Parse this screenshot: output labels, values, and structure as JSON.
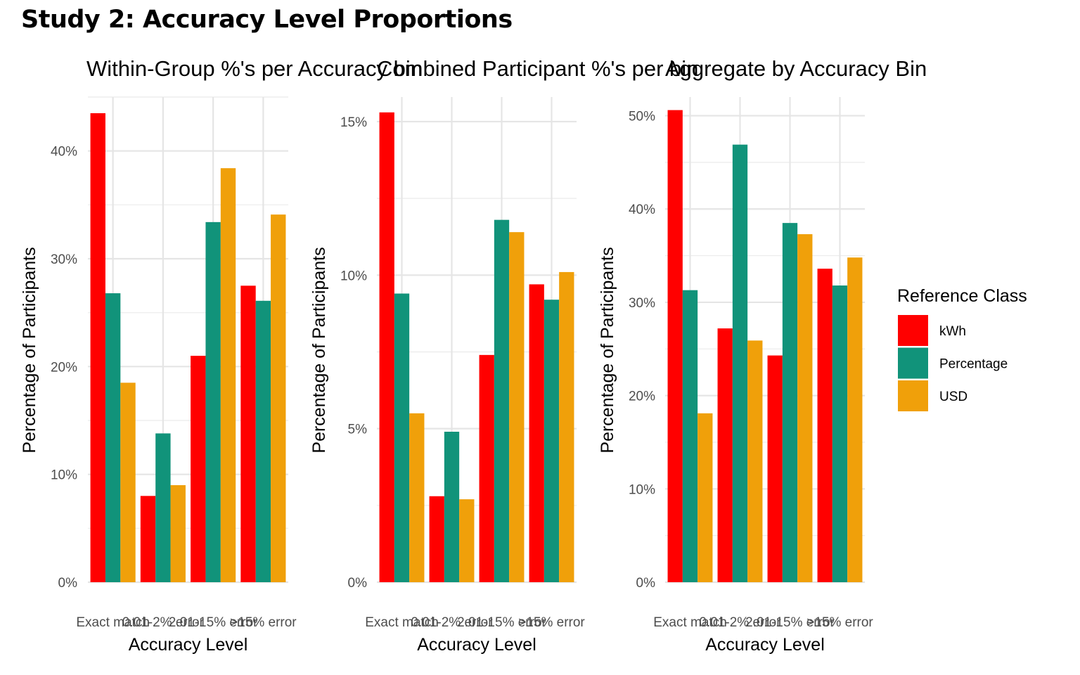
{
  "title": "Study 2: Accuracy Level Proportions",
  "legend": {
    "title": "Reference Class",
    "items": [
      {
        "label": "kWh",
        "color": "#FF0000"
      },
      {
        "label": "Percentage",
        "color": "#11937A"
      },
      {
        "label": "USD",
        "color": "#F0A00A"
      }
    ]
  },
  "chart_data": [
    {
      "type": "bar",
      "title": "Within-Group %'s per Accuracy bin",
      "xlabel": "Accuracy Level",
      "ylabel": "Percentage of Participants",
      "categories": [
        "Exact match",
        "0.01-2% error",
        "2.01-15% error",
        ">15% error"
      ],
      "yticks": [
        "0%",
        "10%",
        "20%",
        "30%",
        "40%"
      ],
      "ylim": [
        0,
        45
      ],
      "grid": true,
      "series": [
        {
          "name": "kWh",
          "values": [
            43.5,
            8.0,
            21.0,
            27.5
          ]
        },
        {
          "name": "Percentage",
          "values": [
            26.8,
            13.8,
            33.4,
            26.1
          ]
        },
        {
          "name": "USD",
          "values": [
            18.5,
            9.0,
            38.4,
            34.1
          ]
        }
      ]
    },
    {
      "type": "bar",
      "title": "Combined Participant %'s per bin",
      "xlabel": "Accuracy Level",
      "ylabel": "Percentage of Participants",
      "categories": [
        "Exact match",
        "0.01-2% error",
        "2.01-15% error",
        ">15% error"
      ],
      "yticks": [
        "0%",
        "5%",
        "10%",
        "15%"
      ],
      "ylim": [
        0,
        15.8
      ],
      "grid": true,
      "series": [
        {
          "name": "kWh",
          "values": [
            15.3,
            2.8,
            7.4,
            9.7
          ]
        },
        {
          "name": "Percentage",
          "values": [
            9.4,
            4.9,
            11.8,
            9.2
          ]
        },
        {
          "name": "USD",
          "values": [
            5.5,
            2.7,
            11.4,
            10.1
          ]
        }
      ]
    },
    {
      "type": "bar",
      "title": "Aggregate by Accuracy Bin",
      "xlabel": "Accuracy Level",
      "ylabel": "Percentage of Participants",
      "categories": [
        "Exact match",
        "0.01-2% error",
        "2.01-15% error",
        ">15% error"
      ],
      "yticks": [
        "0%",
        "10%",
        "20%",
        "30%",
        "40%",
        "50%"
      ],
      "ylim": [
        0,
        52
      ],
      "grid": true,
      "series": [
        {
          "name": "kWh",
          "values": [
            50.6,
            27.2,
            24.3,
            33.6
          ]
        },
        {
          "name": "Percentage",
          "values": [
            31.3,
            46.9,
            38.5,
            31.8
          ]
        },
        {
          "name": "USD",
          "values": [
            18.1,
            25.9,
            37.3,
            34.8
          ]
        }
      ]
    }
  ]
}
